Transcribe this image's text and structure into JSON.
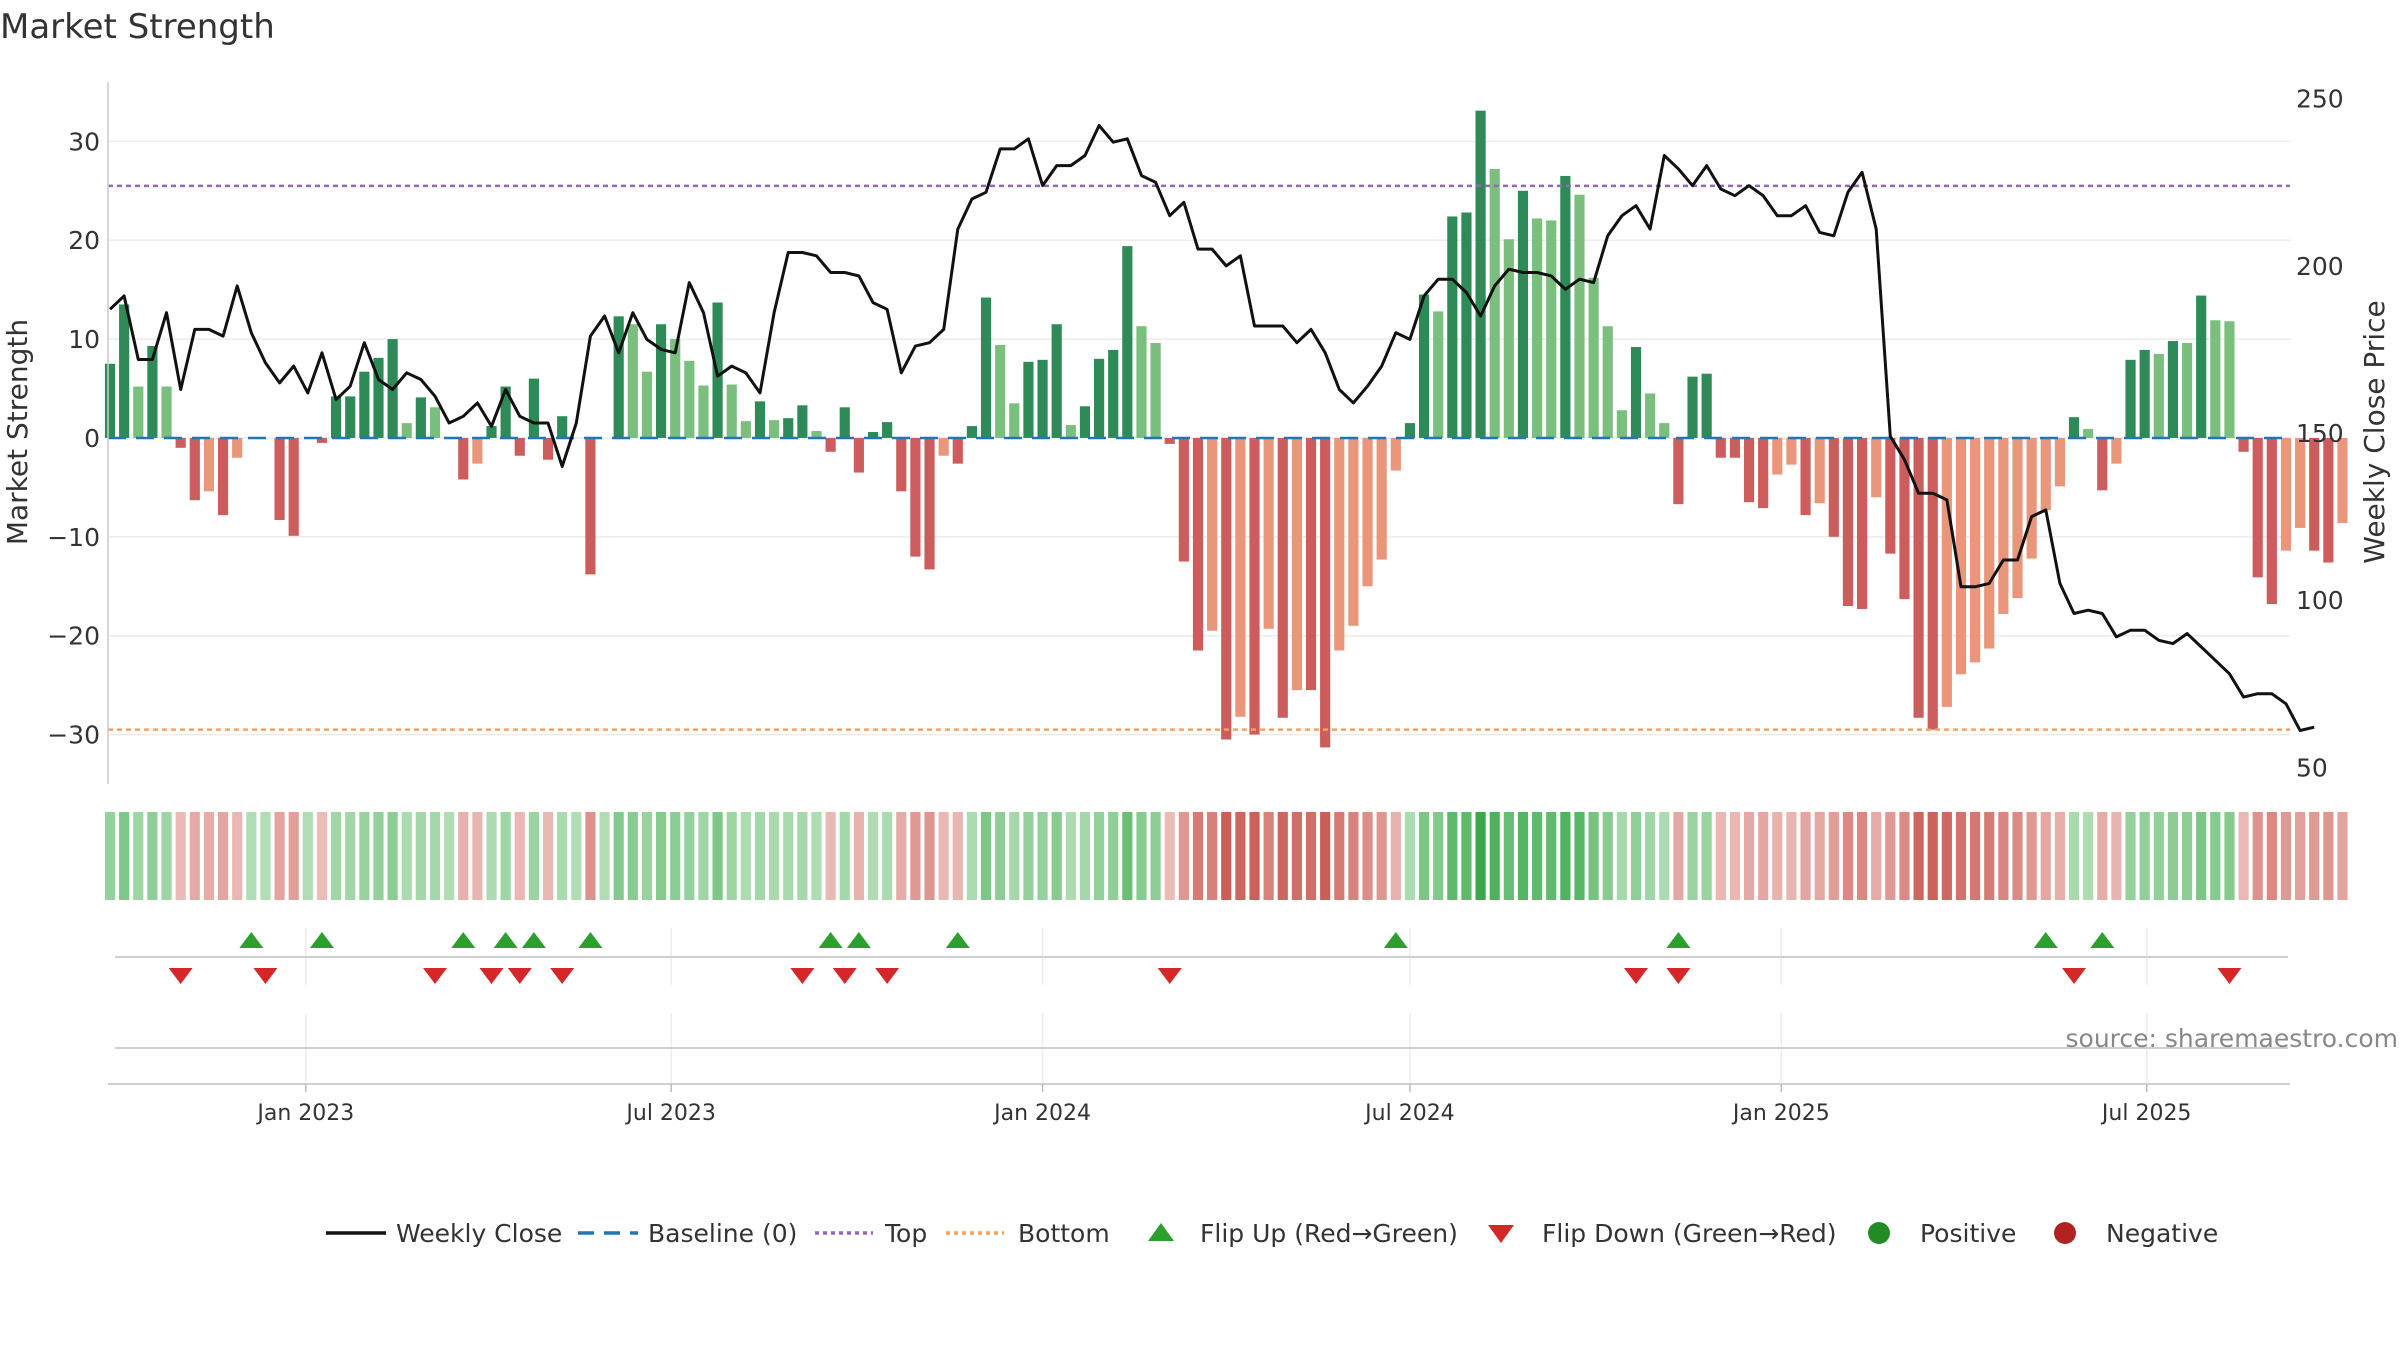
{
  "chart_data": {
    "type": "bar",
    "title": "Market Strength",
    "ylabel_left": "Market Strength",
    "ylabel_right": "Weekly Close Price",
    "ylim_left": [
      -35,
      36
    ],
    "ylim_right": [
      45,
      255
    ],
    "yticks_left": [
      30,
      20,
      10,
      0,
      -10,
      -20,
      -30
    ],
    "yticks_left_labels": [
      "30",
      "20",
      "10",
      "0",
      "−10",
      "−20",
      "−30"
    ],
    "yticks_right": [
      250,
      200,
      150,
      100,
      50
    ],
    "yticks_right_labels": [
      "250",
      "200",
      "150",
      "100",
      "50"
    ],
    "x_range": [
      "2022-09-25",
      "2025-09-10"
    ],
    "x_ticks": [
      {
        "date": "2023-01-01",
        "label": "Jan 2023"
      },
      {
        "date": "2023-07-01",
        "label": "Jul 2023"
      },
      {
        "date": "2024-01-01",
        "label": "Jan 2024"
      },
      {
        "date": "2024-07-01",
        "label": "Jul 2024"
      },
      {
        "date": "2025-01-01",
        "label": "Jan 2025"
      },
      {
        "date": "2025-07-01",
        "label": "Jul 2025"
      }
    ],
    "first_week": "2022-09-26",
    "top_level": 25.5,
    "bottom_level": -29.5,
    "strength": [
      7.5,
      13.5,
      5.2,
      9.3,
      5.2,
      -1,
      -6.3,
      -5.4,
      -7.8,
      -2,
      0,
      0,
      -8.3,
      -9.9,
      0,
      -0.5,
      4.2,
      4.2,
      6.7,
      8.1,
      10,
      1.5,
      4.1,
      3.1,
      0,
      -4.2,
      -2.6,
      1.2,
      5.2,
      -1.8,
      6,
      -2.2,
      2.2,
      0,
      -13.8,
      0,
      12.3,
      11.5,
      6.7,
      11.5,
      10,
      7.8,
      5.3,
      13.7,
      5.4,
      1.7,
      3.7,
      1.8,
      2,
      3.3,
      0.7,
      -1.4,
      3.1,
      -3.5,
      0.6,
      1.6,
      -5.4,
      -12,
      -13.3,
      -1.8,
      -2.6,
      1.2,
      14.2,
      9.4,
      3.5,
      7.7,
      7.9,
      11.5,
      1.3,
      3.2,
      8,
      8.9,
      19.4,
      11.3,
      9.6,
      -0.6,
      -12.5,
      -21.5,
      -19.5,
      -30.5,
      -28.2,
      -30,
      -19.3,
      -28.3,
      -25.5,
      -25.5,
      -31.3,
      -21.5,
      -19,
      -15,
      -12.3,
      -3.3,
      1.5,
      14.5,
      12.8,
      22.4,
      22.8,
      33.1,
      27.2,
      20.1,
      25,
      22.2,
      22,
      26.5,
      24.6,
      16.2,
      11.3,
      2.8,
      9.2,
      4.5,
      1.5,
      -6.7,
      6.2,
      6.5,
      -2,
      -2,
      -6.5,
      -7.1,
      -3.7,
      -2.7,
      -7.8,
      -6.6,
      -10,
      -17,
      -17.3,
      -6,
      -11.7,
      -16.3,
      -28.3,
      -29.5,
      -27.2,
      -23.9,
      -22.7,
      -21.3,
      -17.8,
      -16.2,
      -12.2,
      -7.3,
      -4.9,
      2.1,
      0.9,
      -5.3,
      -2.6,
      7.9,
      8.9,
      8.5,
      9.8,
      9.6,
      14.4,
      11.9,
      11.8,
      -1.4,
      -14.1,
      -16.8,
      -11.4,
      -9.1,
      -11.4,
      -12.6,
      -8.6
    ],
    "weekly_close": [
      187,
      191,
      172,
      172,
      186,
      163,
      181,
      181,
      179,
      194,
      180,
      171,
      165,
      170,
      162,
      174,
      160,
      164,
      177,
      166,
      163,
      168,
      166,
      161,
      153,
      155,
      159,
      152,
      163,
      155,
      153,
      153,
      140,
      153,
      179,
      185,
      174,
      186,
      178,
      175,
      174,
      195,
      186,
      167,
      170,
      168,
      162,
      186,
      204,
      204,
      203,
      198,
      198,
      197,
      189,
      187,
      168,
      176,
      177,
      181,
      211,
      220,
      222,
      235,
      235,
      238,
      224,
      230,
      230,
      233,
      242,
      237,
      238,
      227,
      225,
      215,
      219,
      205,
      205,
      200,
      203,
      182,
      182,
      182,
      177,
      181,
      174,
      163,
      159,
      164,
      170,
      180,
      178,
      191,
      196,
      196,
      192,
      185,
      194,
      199,
      198,
      198,
      197,
      193,
      196,
      195,
      209,
      215,
      218,
      211,
      233,
      229,
      224,
      230,
      223,
      221,
      224,
      221,
      215,
      215,
      218,
      210,
      209,
      222,
      228,
      211,
      149,
      142,
      132,
      132,
      130,
      104,
      104,
      105,
      112,
      112,
      125,
      127,
      105,
      96,
      97,
      96,
      89,
      91,
      91,
      88,
      87,
      90,
      86,
      82,
      78,
      71,
      72,
      72,
      69,
      61,
      62
    ],
    "flip_up_weeks": [
      10,
      15,
      25,
      28,
      30,
      34,
      51,
      53,
      60,
      91,
      111,
      137,
      141
    ],
    "flip_down_weeks": [
      5,
      11,
      23,
      27,
      29,
      32,
      49,
      52,
      55,
      75,
      108,
      111,
      139,
      150
    ],
    "series": [
      {
        "name": "Weekly Close",
        "color": "#111111"
      },
      {
        "name": "Baseline (0)",
        "color": "#1f77b4"
      },
      {
        "name": "Top",
        "color": "#9467bd"
      },
      {
        "name": "Bottom",
        "color": "#f4a261"
      },
      {
        "name": "Flip Up (Red→Green)",
        "color": "#2ca02c"
      },
      {
        "name": "Flip Down (Green→Red)",
        "color": "#d62728"
      },
      {
        "name": "Positive",
        "color": "#228b22"
      },
      {
        "name": "Negative",
        "color": "#b22222"
      }
    ],
    "legend_position": "bottom",
    "source": "source: sharemaestro.com"
  }
}
